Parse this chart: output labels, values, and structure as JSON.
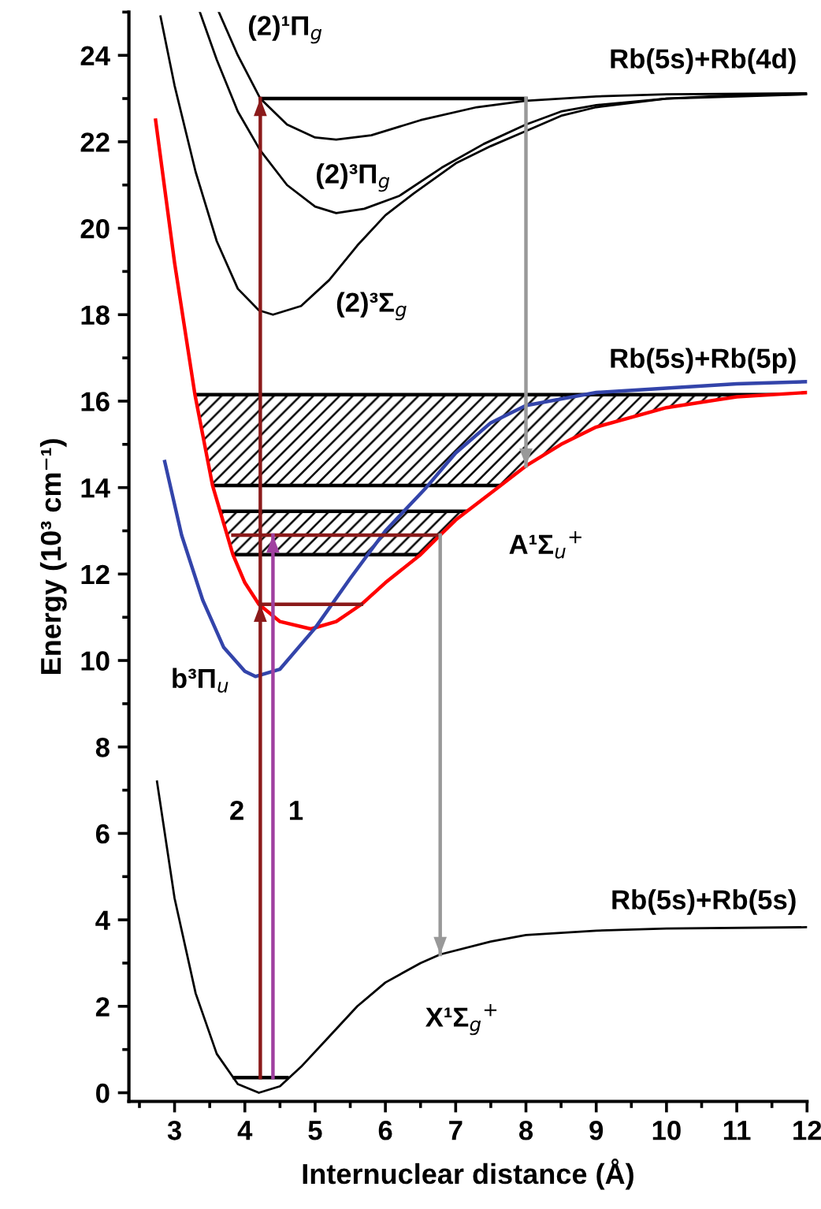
{
  "chart_data": {
    "type": "line",
    "xlabel": "Internuclear distance (Å)",
    "ylabel": "Energy (10³ cm⁻¹)",
    "xlim": [
      2.35,
      12
    ],
    "ylim": [
      -0.2,
      25
    ],
    "xticks": [
      3,
      4,
      5,
      6,
      7,
      8,
      9,
      10,
      11,
      12
    ],
    "yticks": [
      0,
      2,
      4,
      6,
      8,
      10,
      12,
      14,
      16,
      18,
      20,
      22,
      24
    ],
    "grid": false,
    "legend": false,
    "line_style": "solid",
    "series": [
      {
        "name": "A¹Σ$_{u}$$^{+}$",
        "color": "#ff0000",
        "x": [
          2.73,
          3.0,
          3.29,
          3.54,
          3.83,
          4.0,
          4.2,
          4.5,
          4.94,
          5.3,
          5.66,
          6.0,
          6.5,
          6.78,
          7.0,
          7.64,
          8.0,
          8.5,
          9,
          10,
          11,
          12
        ],
        "values": [
          22.5,
          19.2,
          16.15,
          14.05,
          12.45,
          11.8,
          11.3,
          10.9,
          10.73,
          10.9,
          11.3,
          11.8,
          12.45,
          12.9,
          13.25,
          14.05,
          14.5,
          15.0,
          15.4,
          15.85,
          16.1,
          16.2
        ]
      },
      {
        "name": "b³Π$_{u}$",
        "color": "#3344aa",
        "x": [
          2.86,
          3.1,
          3.4,
          3.7,
          4.0,
          4.15,
          4.5,
          5.0,
          5.5,
          6.0,
          6.58,
          7.0,
          7.5,
          8.0,
          9,
          10,
          11,
          12
        ],
        "values": [
          14.6,
          12.9,
          11.4,
          10.3,
          9.75,
          9.63,
          9.8,
          10.75,
          11.9,
          13.0,
          14.0,
          14.8,
          15.5,
          15.9,
          16.2,
          16.3,
          16.4,
          16.45
        ]
      },
      {
        "name": "X¹Σ$_{g}$$^{+}$",
        "color": "#000000",
        "x": [
          2.75,
          3.0,
          3.3,
          3.6,
          3.9,
          4.2,
          4.5,
          4.8,
          5.2,
          5.6,
          6.0,
          6.5,
          6.78,
          7.5,
          8,
          9,
          10,
          12
        ],
        "values": [
          7.2,
          4.5,
          2.3,
          0.9,
          0.2,
          0.0,
          0.15,
          0.6,
          1.3,
          2.0,
          2.55,
          3.0,
          3.2,
          3.5,
          3.65,
          3.75,
          3.8,
          3.83
        ]
      },
      {
        "name": "(2)³Σ$_{g}$",
        "color": "#000000",
        "x": [
          2.8,
          3.0,
          3.3,
          3.6,
          3.9,
          4.2,
          4.4,
          4.8,
          5.2,
          5.6,
          6.0,
          6.4,
          7.0,
          7.5,
          8.0,
          8.5,
          9,
          10,
          11,
          12
        ],
        "values": [
          24.9,
          23.3,
          21.3,
          19.7,
          18.6,
          18.1,
          18.0,
          18.2,
          18.8,
          19.6,
          20.3,
          20.8,
          21.5,
          21.9,
          22.25,
          22.6,
          22.8,
          23.0,
          23.08,
          23.1
        ]
      },
      {
        "name": "(2)³Π$_{g}$",
        "color": "#000000",
        "x": [
          3.36,
          3.6,
          3.9,
          4.22,
          4.6,
          5.0,
          5.3,
          5.7,
          6.2,
          6.8,
          7.4,
          8.0,
          8.5,
          9,
          10,
          12
        ],
        "values": [
          25,
          23.9,
          22.7,
          21.8,
          21.0,
          20.5,
          20.35,
          20.45,
          20.75,
          21.4,
          21.95,
          22.4,
          22.7,
          22.85,
          23.0,
          23.1
        ]
      },
      {
        "name": "(2)¹Π$_{g}$",
        "color": "#000000",
        "x": [
          3.63,
          3.9,
          4.22,
          4.6,
          5.0,
          5.3,
          5.8,
          6.5,
          7.3,
          8.0,
          9,
          10,
          12
        ],
        "values": [
          25,
          24.0,
          23.0,
          22.4,
          22.1,
          22.05,
          22.15,
          22.5,
          22.8,
          22.95,
          23.05,
          23.1,
          23.12
        ]
      },
      {
        "color": "#000000",
        "x": [
          4.22,
          8.0
        ],
        "values": [
          23.0,
          23.0
        ]
      },
      {
        "color": "#999999",
        "x": [
          8.0,
          8.0
        ],
        "values": [
          23.0,
          14.5
        ]
      },
      {
        "color": "#8b1a1a",
        "x": [
          4.22,
          5.66
        ],
        "values": [
          11.3,
          11.3
        ]
      },
      {
        "color": "#8b1a1a",
        "x": [
          3.83,
          6.78
        ],
        "values": [
          12.9,
          12.9
        ]
      },
      {
        "color": "#999999",
        "x": [
          6.78,
          6.78
        ],
        "values": [
          12.9,
          3.2
        ]
      },
      {
        "color": "#000000",
        "x": [
          3.85,
          4.6
        ],
        "values": [
          0.35,
          0.35
        ]
      },
      {
        "name": "2",
        "color": "#8b1a1a",
        "x": [
          4.22,
          4.22,
          4.22
        ],
        "values": [
          0.35,
          11.3,
          23.0
        ]
      },
      {
        "name": "1",
        "color": "#a040a0",
        "x": [
          4.4,
          4.4
        ],
        "values": [
          0.35,
          12.9
        ]
      }
    ],
    "bands": [
      {
        "axis": "y",
        "from": 14.05,
        "to": 16.15,
        "color": "#000000"
      },
      {
        "axis": "y",
        "from": 12.45,
        "to": 13.45,
        "color": "#000000"
      }
    ],
    "annotations": [
      "Rb(5s)+Rb(4d)",
      "Rb(5s)+Rb(5p)",
      "Rb(5s)+Rb(5s)"
    ]
  }
}
